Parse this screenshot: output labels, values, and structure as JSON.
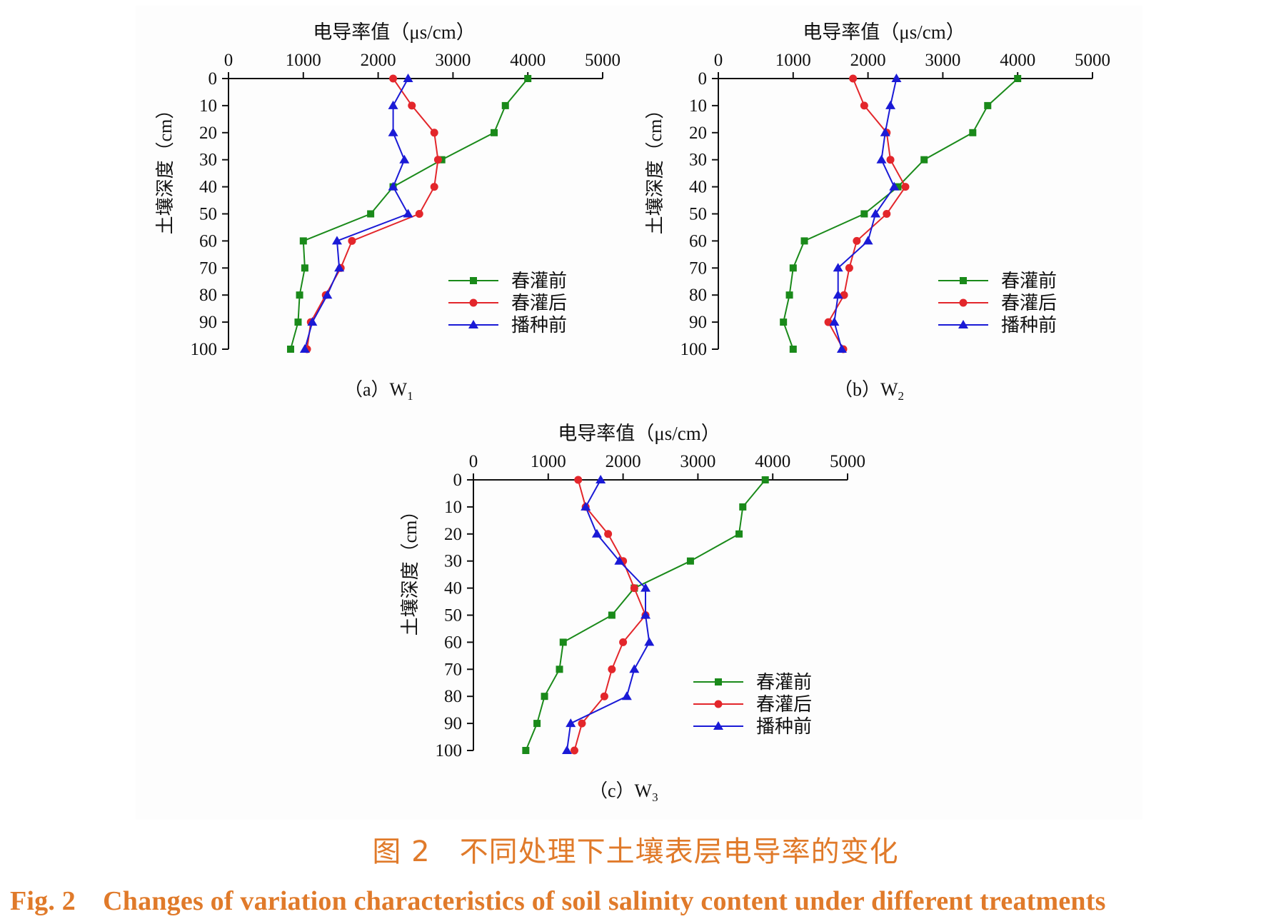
{
  "figure": {
    "caption_cn": "图 2　不同处理下土壤表层电导率的变化",
    "caption_en": "Fig. 2　Changes of variation characteristics of soil salinity content under different treatments"
  },
  "colors": {
    "before_irrigation": "#1a8a1a",
    "after_irrigation": "#e3262b",
    "before_sowing": "#1a1ad6"
  },
  "chart_data": [
    {
      "type": "line",
      "panel_label": "（a）W",
      "panel_sub": "1",
      "xlabel": "电导率值（μs/cm）",
      "ylabel": "土壤深度（cm）",
      "xlim": [
        0,
        5000
      ],
      "ylim": [
        0,
        100
      ],
      "x_ticks": [
        "0",
        "1000",
        "2000",
        "3000",
        "4000",
        "5000"
      ],
      "y_ticks": [
        "0",
        "10",
        "20",
        "30",
        "40",
        "50",
        "60",
        "70",
        "80",
        "90",
        "100"
      ],
      "depth": [
        0,
        10,
        20,
        30,
        40,
        50,
        60,
        70,
        80,
        90,
        100
      ],
      "series": [
        {
          "name": "春灌前",
          "marker": "square",
          "values": [
            4000,
            3700,
            3550,
            2850,
            2200,
            1900,
            1000,
            1020,
            950,
            930,
            830
          ]
        },
        {
          "name": "春灌后",
          "marker": "circle",
          "values": [
            2200,
            2450,
            2750,
            2800,
            2750,
            2550,
            1650,
            1500,
            1300,
            1100,
            1050
          ]
        },
        {
          "name": "播种前",
          "marker": "triangle",
          "values": [
            2400,
            2200,
            2200,
            2350,
            2200,
            2400,
            1450,
            1480,
            1320,
            1120,
            1020
          ]
        }
      ]
    },
    {
      "type": "line",
      "panel_label": "（b）W",
      "panel_sub": "2",
      "xlabel": "电导率值（μs/cm）",
      "ylabel": "土壤深度（cm）",
      "xlim": [
        0,
        5000
      ],
      "ylim": [
        0,
        100
      ],
      "x_ticks": [
        "0",
        "1000",
        "2000",
        "3000",
        "4000",
        "5000"
      ],
      "y_ticks": [
        "0",
        "10",
        "20",
        "30",
        "40",
        "50",
        "60",
        "70",
        "80",
        "90",
        "100"
      ],
      "depth": [
        0,
        10,
        20,
        30,
        40,
        50,
        60,
        70,
        80,
        90,
        100
      ],
      "series": [
        {
          "name": "春灌前",
          "marker": "square",
          "values": [
            4000,
            3600,
            3400,
            2750,
            2400,
            1950,
            1150,
            1000,
            950,
            870,
            1000
          ]
        },
        {
          "name": "春灌后",
          "marker": "circle",
          "values": [
            1800,
            1950,
            2250,
            2300,
            2500,
            2250,
            1850,
            1750,
            1680,
            1470,
            1670
          ]
        },
        {
          "name": "播种前",
          "marker": "triangle",
          "values": [
            2380,
            2300,
            2230,
            2180,
            2350,
            2100,
            2000,
            1600,
            1600,
            1550,
            1650
          ]
        }
      ]
    },
    {
      "type": "line",
      "panel_label": "（c）W",
      "panel_sub": "3",
      "xlabel": "电导率值（μs/cm）",
      "ylabel": "土壤深度（cm）",
      "xlim": [
        0,
        5000
      ],
      "ylim": [
        0,
        100
      ],
      "x_ticks": [
        "0",
        "1000",
        "2000",
        "3000",
        "4000",
        "5000"
      ],
      "y_ticks": [
        "0",
        "10",
        "20",
        "30",
        "40",
        "50",
        "60",
        "70",
        "80",
        "90",
        "100"
      ],
      "depth": [
        0,
        10,
        20,
        30,
        40,
        50,
        60,
        70,
        80,
        90,
        100
      ],
      "series": [
        {
          "name": "春灌前",
          "marker": "square",
          "values": [
            3900,
            3600,
            3550,
            2900,
            2150,
            1850,
            1200,
            1150,
            950,
            850,
            700
          ]
        },
        {
          "name": "春灌后",
          "marker": "circle",
          "values": [
            1400,
            1500,
            1800,
            2000,
            2150,
            2300,
            2000,
            1850,
            1750,
            1450,
            1350
          ]
        },
        {
          "name": "播种前",
          "marker": "triangle",
          "values": [
            1700,
            1500,
            1650,
            1950,
            2300,
            2300,
            2350,
            2150,
            2050,
            1300,
            1250
          ]
        }
      ]
    }
  ]
}
